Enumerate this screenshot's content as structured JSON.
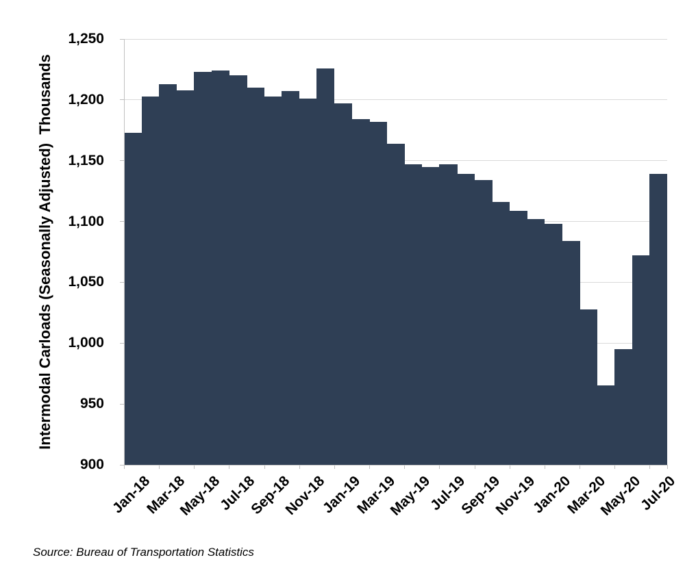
{
  "chart_data": {
    "type": "bar",
    "title": "",
    "categories": [
      "Jan-18",
      "Feb-18",
      "Mar-18",
      "Apr-18",
      "May-18",
      "Jun-18",
      "Jul-18",
      "Aug-18",
      "Sep-18",
      "Oct-18",
      "Nov-18",
      "Dec-18",
      "Jan-19",
      "Feb-19",
      "Mar-19",
      "Apr-19",
      "May-19",
      "Jun-19",
      "Jul-19",
      "Aug-19",
      "Sep-19",
      "Oct-19",
      "Nov-19",
      "Dec-19",
      "Jan-20",
      "Feb-20",
      "Mar-20",
      "Apr-20",
      "May-20",
      "Jun-20",
      "Jul-20"
    ],
    "values": [
      1173,
      1203,
      1213,
      1208,
      1223,
      1224,
      1220,
      1210,
      1203,
      1207,
      1201,
      1226,
      1197,
      1184,
      1182,
      1164,
      1147,
      1145,
      1147,
      1139,
      1134,
      1116,
      1109,
      1102,
      1098,
      1084,
      1028,
      965,
      995,
      1072,
      1139
    ],
    "xlabel": "",
    "ylabel": "Intermodal Carloads (Seasonally Adjusted)  Thousands",
    "ylim": [
      900,
      1250
    ],
    "yticks": {
      "values": [
        900,
        950,
        1000,
        1050,
        1100,
        1150,
        1200,
        1250
      ],
      "labels": [
        "900",
        "950",
        "1,000",
        "1,050",
        "1,100",
        "1,150",
        "1,200",
        "1,250"
      ]
    },
    "xtick_labels": [
      "Jan-18",
      "Mar-18",
      "May-18",
      "Jul-18",
      "Sep-18",
      "Nov-18",
      "Jan-19",
      "Mar-19",
      "May-19",
      "Jul-19",
      "Sep-19",
      "Nov-19",
      "Jan-20",
      "Mar-20",
      "May-20",
      "Jul-20"
    ],
    "xtick_every": 2,
    "grid": true,
    "legend": "none",
    "colors": {
      "bar": "#2F3F55",
      "gridline": "#D9D9D9",
      "axis": "#BFBFBF",
      "text": "#000000",
      "background": "#FFFFFF"
    }
  },
  "source_note": "Source: Bureau of Transportation Statistics"
}
